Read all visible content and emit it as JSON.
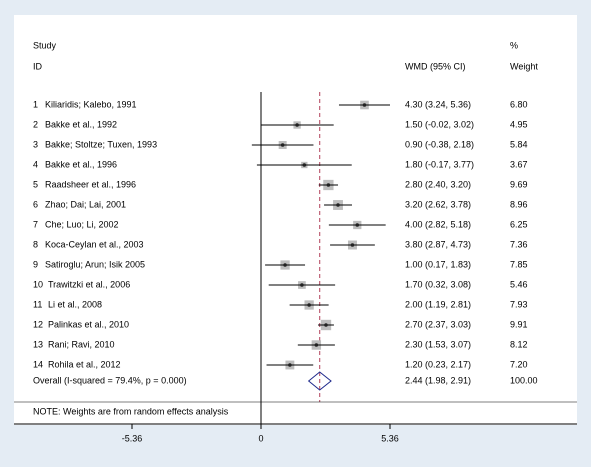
{
  "chart_data": {
    "type": "forest",
    "header": {
      "study": "Study",
      "id": "ID",
      "effect": "WMD (95% CI)",
      "pct": "%",
      "weight": "Weight"
    },
    "studies": [
      {
        "id": 1,
        "name": "Kiliaridis; Kalebo, 1991",
        "wmd": 4.3,
        "lo": 3.24,
        "hi": 5.36,
        "ci_label": "4.30 (3.24, 5.36)",
        "weight": {
          "value": 6.8,
          "label": "6.80"
        }
      },
      {
        "id": 2,
        "name": "Bakke  et al., 1992",
        "wmd": 1.5,
        "lo": -0.02,
        "hi": 3.02,
        "ci_label": "1.50 (-0.02, 3.02)",
        "weight": {
          "value": 4.95,
          "label": "4.95"
        }
      },
      {
        "id": 3,
        "name": "Bakke; Stoltze; Tuxen, 1993",
        "wmd": 0.9,
        "lo": -0.38,
        "hi": 2.18,
        "ci_label": "0.90 (-0.38, 2.18)",
        "weight": {
          "value": 5.84,
          "label": "5.84"
        }
      },
      {
        "id": 4,
        "name": "Bakke et al., 1996",
        "wmd": 1.8,
        "lo": -0.17,
        "hi": 3.77,
        "ci_label": "1.80 (-0.17, 3.77)",
        "weight": {
          "value": 3.67,
          "label": "3.67"
        }
      },
      {
        "id": 5,
        "name": "Raadsheer et al., 1996",
        "wmd": 2.8,
        "lo": 2.4,
        "hi": 3.2,
        "ci_label": "2.80 (2.40, 3.20)",
        "weight": {
          "value": 9.69,
          "label": "9.69"
        }
      },
      {
        "id": 6,
        "name": "Zhao; Dai; Lai, 2001",
        "wmd": 3.2,
        "lo": 2.62,
        "hi": 3.78,
        "ci_label": "3.20 (2.62, 3.78)",
        "weight": {
          "value": 8.96,
          "label": "8.96"
        }
      },
      {
        "id": 7,
        "name": "Che; Luo; Li, 2002",
        "wmd": 4.0,
        "lo": 2.82,
        "hi": 5.18,
        "ci_label": "4.00 (2.82, 5.18)",
        "weight": {
          "value": 6.25,
          "label": "6.25"
        }
      },
      {
        "id": 8,
        "name": "Koca-Ceylan et al., 2003",
        "wmd": 3.8,
        "lo": 2.87,
        "hi": 4.73,
        "ci_label": "3.80 (2.87, 4.73)",
        "weight": {
          "value": 7.36,
          "label": "7.36"
        }
      },
      {
        "id": 9,
        "name": "Satiroglu; Arun; Isik  2005",
        "wmd": 1.0,
        "lo": 0.17,
        "hi": 1.83,
        "ci_label": "1.00 (0.17, 1.83)",
        "weight": {
          "value": 7.85,
          "label": "7.85"
        }
      },
      {
        "id": 10,
        "name": "Trawitzki et al., 2006",
        "wmd": 1.7,
        "lo": 0.32,
        "hi": 3.08,
        "ci_label": "1.70 (0.32, 3.08)",
        "weight": {
          "value": 5.46,
          "label": "5.46"
        }
      },
      {
        "id": 11,
        "name": "Li et al., 2008",
        "wmd": 2.0,
        "lo": 1.19,
        "hi": 2.81,
        "ci_label": "2.00 (1.19, 2.81)",
        "weight": {
          "value": 7.93,
          "label": "7.93"
        }
      },
      {
        "id": 12,
        "name": "Palinkas et al., 2010",
        "wmd": 2.7,
        "lo": 2.37,
        "hi": 3.03,
        "ci_label": "2.70 (2.37, 3.03)",
        "weight": {
          "value": 9.91,
          "label": "9.91"
        }
      },
      {
        "id": 13,
        "name": "Rani; Ravi, 2010",
        "wmd": 2.3,
        "lo": 1.53,
        "hi": 3.07,
        "ci_label": "2.30 (1.53, 3.07)",
        "weight": {
          "value": 8.12,
          "label": "8.12"
        }
      },
      {
        "id": 14,
        "name": "Rohila et al., 2012",
        "wmd": 1.2,
        "lo": 0.23,
        "hi": 2.17,
        "ci_label": "1.20 (0.23, 2.17)",
        "weight": {
          "value": 7.2,
          "label": "7.20"
        }
      }
    ],
    "overall": {
      "name": "Overall  (I-squared = 79.4%, p = 0.000)",
      "wmd": 2.44,
      "lo": 1.98,
      "hi": 2.91,
      "ci_label": "2.44 (1.98, 2.91)",
      "weight": {
        "value": 100,
        "label": "100.00"
      }
    },
    "note": "NOTE: Weights are from random effects analysis",
    "xlim": [
      -5.36,
      5.36
    ],
    "xticks": [
      -5.36,
      0,
      5.36
    ]
  }
}
